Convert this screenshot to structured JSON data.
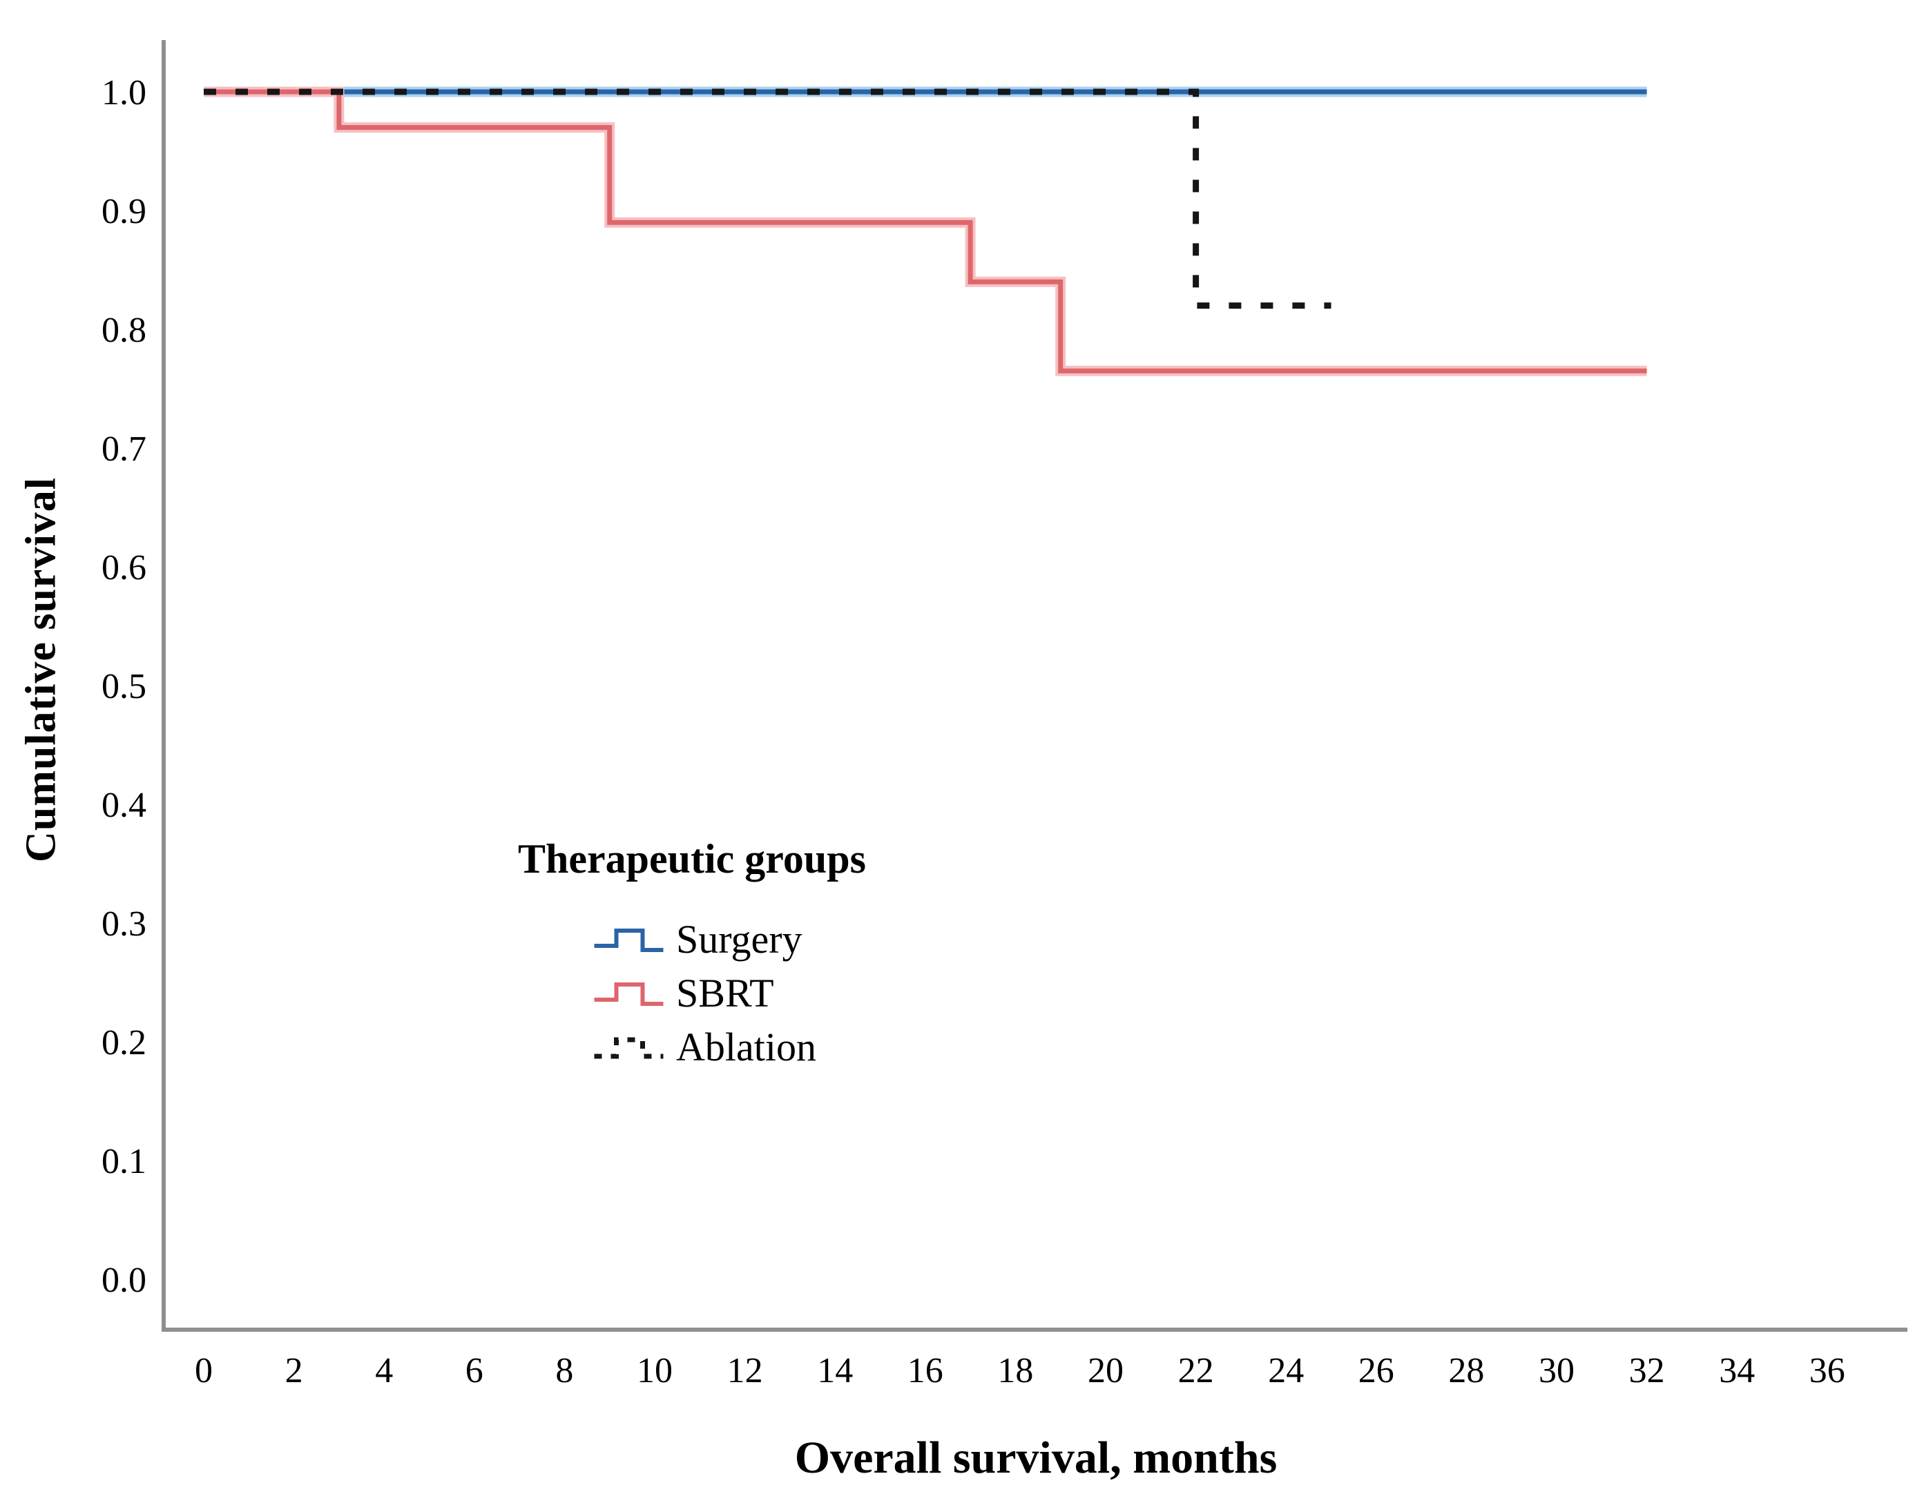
{
  "page": {
    "background": "#ffffff"
  },
  "chart_data": {
    "type": "line",
    "variant": "kaplan_meier_step",
    "title": "",
    "xlabel": "Overall survival, months",
    "ylabel": "Cumulative survival",
    "xlim": [
      0,
      37.8
    ],
    "ylim": [
      0.0,
      1.05
    ],
    "grid": false,
    "axis_color": "#8f8f8f",
    "x_ticks": [
      0,
      2,
      4,
      6,
      8,
      10,
      12,
      14,
      16,
      18,
      20,
      22,
      24,
      26,
      28,
      30,
      32,
      34,
      36
    ],
    "y_ticks": [
      "1.0",
      "0.9",
      "0.8",
      "0.7",
      "0.6",
      "0.5",
      "0.4",
      "0.3",
      "0.2",
      "0.1",
      "0.0"
    ],
    "legend": {
      "title": "Therapeutic groups",
      "position": "inside-center-left"
    },
    "series": [
      {
        "name": "Surgery",
        "style": "solid",
        "color": "#2b63a6",
        "halo_color": "#a8d3f2",
        "points": [
          [
            0,
            1.0
          ],
          [
            32,
            1.0
          ]
        ]
      },
      {
        "name": "SBRT",
        "style": "solid",
        "color": "#dd666b",
        "halo_color": "#f6c0c3",
        "points": [
          [
            0,
            1.0
          ],
          [
            3,
            1.0
          ],
          [
            3,
            0.97
          ],
          [
            9,
            0.97
          ],
          [
            9,
            0.89
          ],
          [
            17,
            0.89
          ],
          [
            17,
            0.84
          ],
          [
            19,
            0.84
          ],
          [
            19,
            0.765
          ],
          [
            32,
            0.765
          ]
        ]
      },
      {
        "name": "Ablation",
        "style": "dotted",
        "color": "#161616",
        "halo_color": null,
        "points": [
          [
            0,
            1.0
          ],
          [
            22,
            1.0
          ],
          [
            22,
            0.82
          ],
          [
            25,
            0.82
          ]
        ]
      }
    ]
  }
}
